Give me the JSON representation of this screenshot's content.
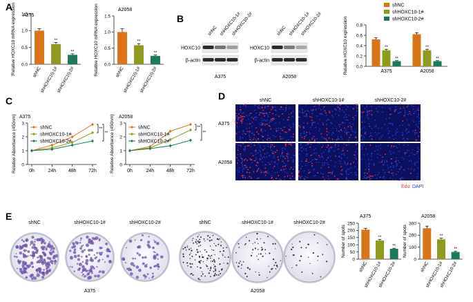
{
  "figure": {
    "panel_letters": [
      "A",
      "B",
      "C",
      "D",
      "E"
    ],
    "colors": {
      "shNC": "#d9741b",
      "shHOXC10-1#": "#8f9a1f",
      "shHOXC10-2#": "#1a7a5a",
      "axis": "#222222",
      "blot_band": "#2a2a2a",
      "edu": "#ff3030",
      "dapi": "#2f3fd8",
      "microscopy_bg": "#0c1060",
      "stain_purple": "#6c4fa6",
      "stain_black": "#1a1a1a"
    },
    "western_blot": {
      "lanes": [
        "shNC",
        "shHOXC10-1#",
        "shHOXC10-2#"
      ],
      "rows": [
        "HOXC10",
        "β-actin"
      ],
      "cell_lines": [
        "A375",
        "A2058"
      ],
      "band_intensity": {
        "A375": {
          "HOXC10": [
            1.0,
            0.55,
            0.28
          ],
          "β-actin": [
            1.0,
            1.0,
            1.0
          ]
        },
        "A2058": {
          "HOXC10": [
            1.0,
            0.5,
            0.22
          ],
          "β-actin": [
            1.0,
            1.0,
            1.0
          ]
        }
      }
    },
    "edu_panel": {
      "columns": [
        "shNC",
        "shHOXC10-1#",
        "shHOXC10-2#"
      ],
      "rows": [
        "A375",
        "A2058"
      ],
      "legend": [
        "Edu",
        "DAPI"
      ],
      "red_dot_density": [
        [
          1.0,
          0.6,
          0.25
        ],
        [
          1.0,
          0.55,
          0.25
        ]
      ]
    },
    "colony_panel": {
      "columns": [
        "shNC",
        "shHOXC10-1#",
        "shHOXC10-2#",
        "shNC",
        "shHOXC10-1#",
        "shHOXC10-2#"
      ],
      "cell_labels": [
        "A375",
        "A2058"
      ],
      "colony_density": [
        1.0,
        0.65,
        0.35,
        1.0,
        0.45,
        0.2
      ]
    }
  },
  "chart_data": [
    {
      "id": "A-A375",
      "type": "bar",
      "title": "A375",
      "categories": [
        "shNC",
        "shHOXC10-1#",
        "shHOXC10-2#"
      ],
      "values": [
        1.0,
        0.6,
        0.28
      ],
      "errors": [
        0.06,
        0.05,
        0.03
      ],
      "annotations": [
        "",
        "**",
        "**"
      ],
      "ylabel": "Relative HOXC10 mRNA expression",
      "ylim": [
        0,
        1.5
      ],
      "yticks": [
        0.0,
        0.5,
        1.0,
        1.5
      ]
    },
    {
      "id": "A-A2058",
      "type": "bar",
      "title": "A2058",
      "categories": [
        "shNC",
        "shHOXC10-1#",
        "shHOXC10-2#"
      ],
      "values": [
        1.0,
        0.59,
        0.26
      ],
      "errors": [
        0.1,
        0.05,
        0.03
      ],
      "annotations": [
        "",
        "**",
        "**"
      ],
      "ylabel": "Relative HOXC10 mRNA expression",
      "ylim": [
        0,
        1.5
      ],
      "yticks": [
        0.0,
        0.5,
        1.0,
        1.5
      ]
    },
    {
      "id": "B-quant",
      "type": "bar",
      "categories": [
        "A375",
        "A2058"
      ],
      "series": [
        {
          "name": "shNC",
          "values": [
            0.52,
            0.62
          ],
          "errors": [
            0.03,
            0.03
          ]
        },
        {
          "name": "shHOXC10-1#",
          "values": [
            0.31,
            0.31
          ],
          "errors": [
            0.02,
            0.02
          ]
        },
        {
          "name": "shHOXC10-2#",
          "values": [
            0.1,
            0.1
          ],
          "errors": [
            0.01,
            0.01
          ]
        }
      ],
      "annotations": [
        "",
        "**",
        "**"
      ],
      "ylabel": "Relative HOXC10 expression",
      "ylim": [
        0,
        0.8
      ],
      "yticks": [
        0.0,
        0.2,
        0.4,
        0.6,
        0.8
      ],
      "legend_position": "top"
    },
    {
      "id": "C-A375",
      "type": "line",
      "title": "A375",
      "x": [
        "0h",
        "24h",
        "48h",
        "72h"
      ],
      "series": [
        {
          "name": "shNC",
          "values": [
            1.0,
            1.4,
            2.0,
            2.9
          ]
        },
        {
          "name": "shHOXC10-1#",
          "values": [
            1.0,
            1.2,
            1.6,
            2.3
          ]
        },
        {
          "name": "shHOXC10-2#",
          "values": [
            1.0,
            1.1,
            1.4,
            1.7
          ]
        }
      ],
      "annotations": [
        "**",
        "**"
      ],
      "ylabel": "Relative Absorbance (450nm)",
      "ylim": [
        0,
        3
      ],
      "yticks": [
        0,
        1,
        2,
        3
      ],
      "legend_position": "top-left"
    },
    {
      "id": "C-A2058",
      "type": "line",
      "title": "A2058",
      "x": [
        "0h",
        "24h",
        "48h",
        "72h"
      ],
      "series": [
        {
          "name": "shNC",
          "values": [
            1.0,
            1.3,
            2.4,
            2.9
          ]
        },
        {
          "name": "shHOXC10-1#",
          "values": [
            1.0,
            1.2,
            1.8,
            2.5
          ]
        },
        {
          "name": "shHOXC10-2#",
          "values": [
            1.0,
            1.15,
            1.35,
            1.75
          ]
        }
      ],
      "annotations": [
        "**",
        "**"
      ],
      "ylabel": "Relative Absorbance (450nm)",
      "ylim": [
        0,
        3
      ],
      "yticks": [
        0,
        1,
        2,
        3
      ],
      "legend_position": "top-left"
    },
    {
      "id": "E-A375",
      "type": "bar",
      "title": "A375",
      "categories": [
        "shNC",
        "shHOXC10-1#",
        "shHOXC10-2#"
      ],
      "values": [
        205,
        130,
        72
      ],
      "errors": [
        10,
        8,
        4
      ],
      "annotations": [
        "",
        "**",
        "**"
      ],
      "ylabel": "Number of spots",
      "ylim": [
        0,
        250
      ],
      "yticks": [
        0,
        50,
        100,
        150,
        200,
        250
      ]
    },
    {
      "id": "E-A2058",
      "type": "bar",
      "title": "A2058",
      "categories": [
        "shNC",
        "shHOXC10-1#",
        "shHOXC10-2#"
      ],
      "values": [
        258,
        165,
        60
      ],
      "errors": [
        18,
        10,
        5
      ],
      "annotations": [
        "",
        "**",
        "**"
      ],
      "ylabel": "Number of spots",
      "ylim": [
        0,
        300
      ],
      "yticks": [
        0,
        100,
        200,
        300
      ]
    }
  ]
}
